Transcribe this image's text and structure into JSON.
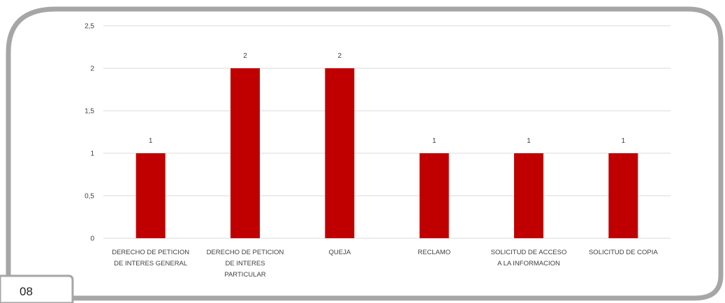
{
  "page": {
    "number": "08"
  },
  "colors": {
    "bar": "#c00000",
    "frame": "#a6a6a6",
    "grid": "#d9d9d9",
    "text": "#404040"
  },
  "chart_data": {
    "type": "bar",
    "categories": [
      [
        "DERECHO DE PETICION",
        "DE INTERES GENERAL"
      ],
      [
        "DERECHO DE PETICION",
        "DE INTERES",
        "PARTICULAR"
      ],
      [
        "QUEJA"
      ],
      [
        "RECLAMO"
      ],
      [
        "SOLICITUD DE ACCESO",
        "A LA INFORMACION"
      ],
      [
        "SOLICITUD DE COPIA"
      ]
    ],
    "values": [
      1,
      2,
      2,
      1,
      1,
      1
    ],
    "data_labels": [
      "1",
      "2",
      "2",
      "1",
      "1",
      "1"
    ],
    "yticks": [
      0,
      0.5,
      1,
      1.5,
      2,
      2.5
    ],
    "ytick_labels": [
      "0",
      "0,5",
      "1",
      "1,5",
      "2",
      "2,5"
    ],
    "ylim": [
      0,
      2.5
    ],
    "grid": true,
    "legend": "none"
  }
}
